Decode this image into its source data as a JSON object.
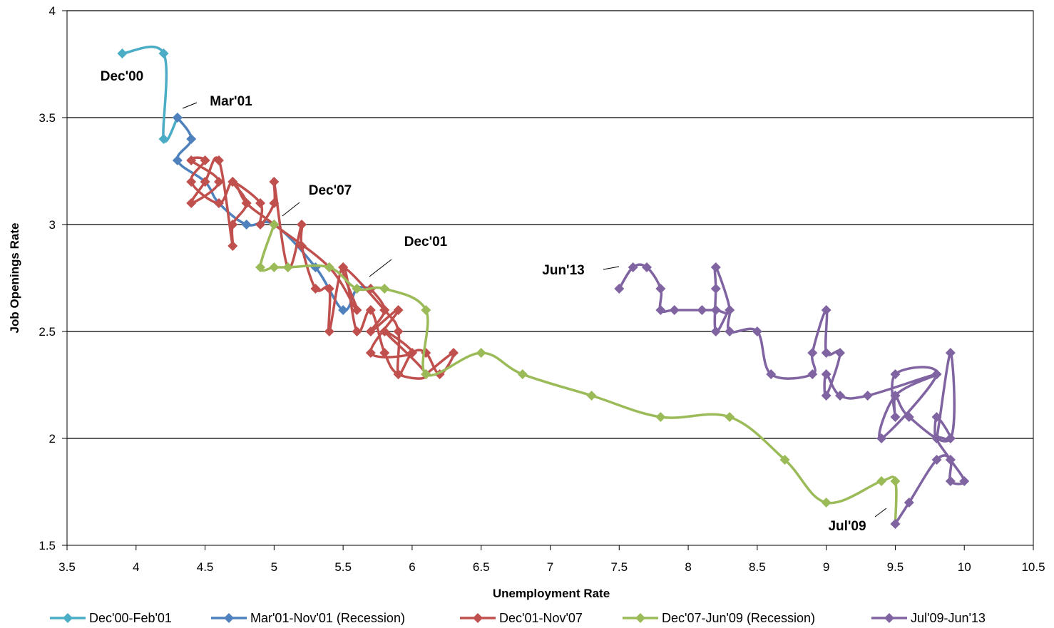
{
  "chart_data": {
    "type": "line",
    "xlabel": "Unemployment Rate",
    "ylabel": "Job Openings Rate",
    "xlim": [
      3.5,
      10.5
    ],
    "ylim": [
      1.5,
      4
    ],
    "x_ticks": [
      "3.5",
      "4",
      "4.5",
      "5",
      "5.5",
      "6",
      "6.5",
      "7",
      "7.5",
      "8",
      "8.5",
      "9",
      "9.5",
      "10",
      "10.5"
    ],
    "y_ticks": [
      "1.5",
      "2",
      "2.5",
      "3",
      "3.5",
      "4"
    ],
    "grid": "horizontal",
    "legend_position": "bottom",
    "series": [
      {
        "name": "Dec'00-Feb'01",
        "color": "#4bacc6",
        "points": [
          [
            3.9,
            3.8
          ],
          [
            4.2,
            3.8
          ],
          [
            4.2,
            3.4
          ],
          [
            4.3,
            3.5
          ]
        ]
      },
      {
        "name": "Mar'01-Nov'01 (Recession)",
        "color": "#4f81bd",
        "points": [
          [
            4.3,
            3.5
          ],
          [
            4.4,
            3.4
          ],
          [
            4.3,
            3.3
          ],
          [
            4.5,
            3.2
          ],
          [
            4.6,
            3.1
          ],
          [
            4.8,
            3.0
          ],
          [
            5.0,
            3.0
          ],
          [
            5.3,
            2.8
          ],
          [
            5.5,
            2.6
          ],
          [
            5.6,
            2.7
          ],
          [
            5.7,
            2.7
          ]
        ]
      },
      {
        "name": "Dec'01-Nov'07",
        "color": "#c0504d",
        "points": [
          [
            5.7,
            2.7
          ],
          [
            5.8,
            2.6
          ],
          [
            5.7,
            2.5
          ],
          [
            5.9,
            2.6
          ],
          [
            5.7,
            2.4
          ],
          [
            6.0,
            2.4
          ],
          [
            5.8,
            2.5
          ],
          [
            6.1,
            2.3
          ],
          [
            5.9,
            2.3
          ],
          [
            5.8,
            2.4
          ],
          [
            5.7,
            2.6
          ],
          [
            5.6,
            2.5
          ],
          [
            5.5,
            2.8
          ],
          [
            5.4,
            2.5
          ],
          [
            5.4,
            2.7
          ],
          [
            5.3,
            2.7
          ],
          [
            5.2,
            2.9
          ],
          [
            5.2,
            3.0
          ],
          [
            5.1,
            2.8
          ],
          [
            5.0,
            3.2
          ],
          [
            5.0,
            3.1
          ],
          [
            4.9,
            3.0
          ],
          [
            4.9,
            3.1
          ],
          [
            4.7,
            3.2
          ],
          [
            4.8,
            3.1
          ],
          [
            4.7,
            3.0
          ],
          [
            4.7,
            2.9
          ],
          [
            4.6,
            3.3
          ],
          [
            4.5,
            3.2
          ],
          [
            4.4,
            3.1
          ],
          [
            4.6,
            3.2
          ],
          [
            4.4,
            3.3
          ],
          [
            4.5,
            3.3
          ],
          [
            4.4,
            3.2
          ],
          [
            4.6,
            3.1
          ],
          [
            4.7,
            3.2
          ],
          [
            4.8,
            3.1
          ],
          [
            5.0,
            3.0
          ],
          [
            5.4,
            2.8
          ],
          [
            5.6,
            2.6
          ],
          [
            5.5,
            2.8
          ],
          [
            5.8,
            2.6
          ],
          [
            5.9,
            2.5
          ],
          [
            5.9,
            2.3
          ],
          [
            6.0,
            2.4
          ],
          [
            6.1,
            2.4
          ],
          [
            6.2,
            2.3
          ],
          [
            6.3,
            2.4
          ],
          [
            6.1,
            2.3
          ]
        ]
      },
      {
        "name": "Dec'07-Jun'09 (Recession)",
        "color": "#9bbb59",
        "points": [
          [
            5.0,
            3.0
          ],
          [
            4.9,
            2.8
          ],
          [
            5.0,
            2.8
          ],
          [
            5.1,
            2.8
          ],
          [
            5.4,
            2.8
          ],
          [
            5.6,
            2.7
          ],
          [
            5.8,
            2.7
          ],
          [
            6.1,
            2.6
          ],
          [
            6.1,
            2.3
          ],
          [
            6.5,
            2.4
          ],
          [
            6.8,
            2.3
          ],
          [
            7.3,
            2.2
          ],
          [
            7.8,
            2.1
          ],
          [
            8.3,
            2.1
          ],
          [
            8.7,
            1.9
          ],
          [
            9.0,
            1.7
          ],
          [
            9.4,
            1.8
          ],
          [
            9.5,
            1.8
          ],
          [
            9.5,
            1.6
          ]
        ]
      },
      {
        "name": "Jul'09-Jun'13",
        "color": "#8064a2",
        "points": [
          [
            9.5,
            1.6
          ],
          [
            9.6,
            1.7
          ],
          [
            9.8,
            1.9
          ],
          [
            9.9,
            1.9
          ],
          [
            9.9,
            1.8
          ],
          [
            10.0,
            1.8
          ],
          [
            9.9,
            1.9
          ],
          [
            9.8,
            2.0
          ],
          [
            9.9,
            2.0
          ],
          [
            9.8,
            2.1
          ],
          [
            9.8,
            2.0
          ],
          [
            9.9,
            2.4
          ],
          [
            9.9,
            2.0
          ],
          [
            9.6,
            2.1
          ],
          [
            9.5,
            2.2
          ],
          [
            9.5,
            2.1
          ],
          [
            9.5,
            2.3
          ],
          [
            9.8,
            2.3
          ],
          [
            9.4,
            2.0
          ],
          [
            9.5,
            2.2
          ],
          [
            9.8,
            2.3
          ],
          [
            9.3,
            2.2
          ],
          [
            9.1,
            2.2
          ],
          [
            9.0,
            2.3
          ],
          [
            9.0,
            2.2
          ],
          [
            9.1,
            2.4
          ],
          [
            9.0,
            2.4
          ],
          [
            9.0,
            2.6
          ],
          [
            8.9,
            2.4
          ],
          [
            8.9,
            2.3
          ],
          [
            8.6,
            2.3
          ],
          [
            8.5,
            2.5
          ],
          [
            8.3,
            2.5
          ],
          [
            8.3,
            2.6
          ],
          [
            8.2,
            2.5
          ],
          [
            8.2,
            2.7
          ],
          [
            8.2,
            2.8
          ],
          [
            8.3,
            2.6
          ],
          [
            8.2,
            2.6
          ],
          [
            8.1,
            2.6
          ],
          [
            7.9,
            2.6
          ],
          [
            7.8,
            2.6
          ],
          [
            7.8,
            2.7
          ],
          [
            7.7,
            2.8
          ],
          [
            7.6,
            2.8
          ],
          [
            7.5,
            2.7
          ]
        ]
      }
    ],
    "annotations": [
      {
        "text": "Dec'00",
        "at": [
          3.9,
          3.8
        ]
      },
      {
        "text": "Mar'01",
        "at": [
          4.3,
          3.5
        ]
      },
      {
        "text": "Dec'07",
        "at": [
          5.0,
          3.0
        ]
      },
      {
        "text": "Dec'01",
        "at": [
          5.7,
          2.7
        ]
      },
      {
        "text": "Jun'13",
        "at": [
          7.5,
          2.7
        ]
      },
      {
        "text": "Jul'09",
        "at": [
          9.5,
          1.6
        ]
      }
    ]
  }
}
